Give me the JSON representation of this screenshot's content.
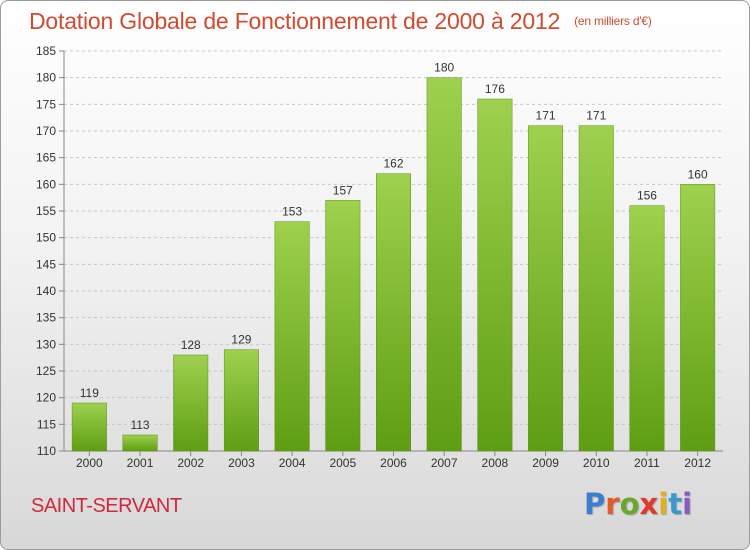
{
  "header": {
    "title": "Dotation Globale de Fonctionnement de 2000 à 2012",
    "subtitle": "(en milliers d'€)"
  },
  "footer": {
    "commune": "SAINT-SERVANT",
    "brand_letters": [
      "P",
      "r",
      "o",
      "x",
      "i",
      "t",
      "i"
    ],
    "brand_colors": [
      "#3a7fd0",
      "#e05a2a",
      "#6aa82c",
      "#e03a2a",
      "#e0b020",
      "#3a9ad0",
      "#8a5ac0"
    ]
  },
  "colors": {
    "bar_light": "#9ed14e",
    "bar_dark": "#5e9e12",
    "grid": "#c8c8c8",
    "title": "#d24a30",
    "commune": "#d0283c"
  },
  "chart_data": {
    "type": "bar",
    "categories": [
      "2000",
      "2001",
      "2002",
      "2003",
      "2004",
      "2005",
      "2006",
      "2007",
      "2008",
      "2009",
      "2010",
      "2011",
      "2012"
    ],
    "values": [
      119,
      113,
      128,
      129,
      153,
      157,
      162,
      180,
      176,
      171,
      171,
      156,
      160
    ],
    "title": "Dotation Globale de Fonctionnement de 2000 à 2012",
    "subtitle": "(en milliers d'€)",
    "xlabel": "",
    "ylabel": "",
    "ylim": [
      110,
      185
    ],
    "yticks": [
      110,
      115,
      120,
      125,
      130,
      135,
      140,
      145,
      150,
      155,
      160,
      165,
      170,
      175,
      180,
      185
    ],
    "grid": true,
    "legend": "none"
  }
}
